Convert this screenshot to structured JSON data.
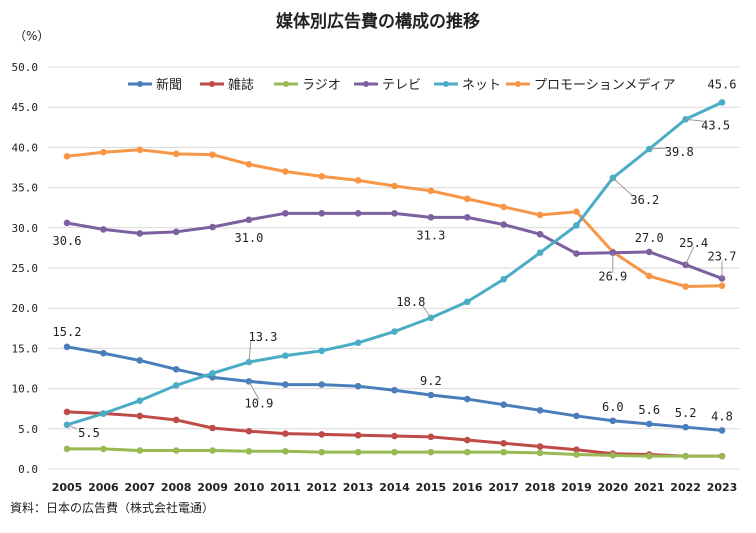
{
  "chart_data": {
    "type": "line",
    "title": "媒体別広告費の構成の推移",
    "ylabel": "（%）",
    "ylim": [
      0,
      50
    ],
    "yticks": [
      "0.0",
      "5.0",
      "10.0",
      "15.0",
      "20.0",
      "25.0",
      "30.0",
      "35.0",
      "40.0",
      "45.0",
      "50.0"
    ],
    "grid": true,
    "legend_position": "top",
    "source": "資料：日本の広告費（株式会社電通）",
    "categories": [
      "2005",
      "2006",
      "2007",
      "2008",
      "2009",
      "2010",
      "2011",
      "2012",
      "2013",
      "2014",
      "2015",
      "2016",
      "2017",
      "2018",
      "2019",
      "2020",
      "2021",
      "2022",
      "2023"
    ],
    "series": [
      {
        "name": "新聞",
        "color": "#4a7ebb",
        "values": [
          15.2,
          14.4,
          13.5,
          12.4,
          11.4,
          10.9,
          10.5,
          10.5,
          10.3,
          9.8,
          9.2,
          8.7,
          8.0,
          7.3,
          6.6,
          6.0,
          5.6,
          5.2,
          4.8
        ]
      },
      {
        "name": "雑誌",
        "color": "#be4b48",
        "values": [
          7.1,
          6.9,
          6.6,
          6.1,
          5.1,
          4.7,
          4.4,
          4.3,
          4.2,
          4.1,
          4.0,
          3.6,
          3.2,
          2.8,
          2.4,
          1.9,
          1.8,
          1.6,
          1.6
        ]
      },
      {
        "name": "ラジオ",
        "color": "#98b954",
        "values": [
          2.5,
          2.5,
          2.3,
          2.3,
          2.3,
          2.2,
          2.2,
          2.1,
          2.1,
          2.1,
          2.1,
          2.1,
          2.1,
          2.0,
          1.8,
          1.7,
          1.6,
          1.6,
          1.6
        ]
      },
      {
        "name": "テレビ",
        "color": "#7d60a0",
        "values": [
          30.6,
          29.8,
          29.3,
          29.5,
          30.1,
          31.0,
          31.8,
          31.8,
          31.8,
          31.8,
          31.3,
          31.3,
          30.4,
          29.2,
          26.8,
          26.9,
          27.0,
          25.4,
          23.7
        ]
      },
      {
        "name": "ネット",
        "color": "#4bacc6",
        "values": [
          5.5,
          6.9,
          8.5,
          10.4,
          11.9,
          13.3,
          14.1,
          14.7,
          15.7,
          17.1,
          18.8,
          20.8,
          23.6,
          26.9,
          30.3,
          36.2,
          39.8,
          43.5,
          45.6
        ]
      },
      {
        "name": "プロモーションメディア",
        "color": "#f79646",
        "values": [
          38.9,
          39.4,
          39.7,
          39.2,
          39.1,
          37.9,
          37.0,
          36.4,
          35.9,
          35.2,
          34.6,
          33.6,
          32.6,
          31.6,
          32.0,
          27.0,
          24.0,
          22.7,
          22.8
        ]
      }
    ],
    "data_labels": [
      {
        "series": 0,
        "year": "2005",
        "text": "15.2"
      },
      {
        "series": 0,
        "year": "2010",
        "text": "10.9"
      },
      {
        "series": 0,
        "year": "2015",
        "text": "9.2"
      },
      {
        "series": 0,
        "year": "2020",
        "text": "6.0"
      },
      {
        "series": 0,
        "year": "2021",
        "text": "5.6"
      },
      {
        "series": 0,
        "year": "2022",
        "text": "5.2"
      },
      {
        "series": 0,
        "year": "2023",
        "text": "4.8"
      },
      {
        "series": 3,
        "year": "2005",
        "text": "30.6"
      },
      {
        "series": 3,
        "year": "2010",
        "text": "31.0"
      },
      {
        "series": 3,
        "year": "2015",
        "text": "31.3"
      },
      {
        "series": 3,
        "year": "2020",
        "text": "26.9"
      },
      {
        "series": 3,
        "year": "2021",
        "text": "27.0"
      },
      {
        "series": 3,
        "year": "2022",
        "text": "25.4"
      },
      {
        "series": 3,
        "year": "2023",
        "text": "23.7"
      },
      {
        "series": 4,
        "year": "2005",
        "text": "5.5"
      },
      {
        "series": 4,
        "year": "2010",
        "text": "13.3"
      },
      {
        "series": 4,
        "year": "2015",
        "text": "18.8"
      },
      {
        "series": 4,
        "year": "2020",
        "text": "36.2"
      },
      {
        "series": 4,
        "year": "2021",
        "text": "39.8"
      },
      {
        "series": 4,
        "year": "2022",
        "text": "43.5"
      },
      {
        "series": 4,
        "year": "2023",
        "text": "45.6"
      }
    ]
  }
}
